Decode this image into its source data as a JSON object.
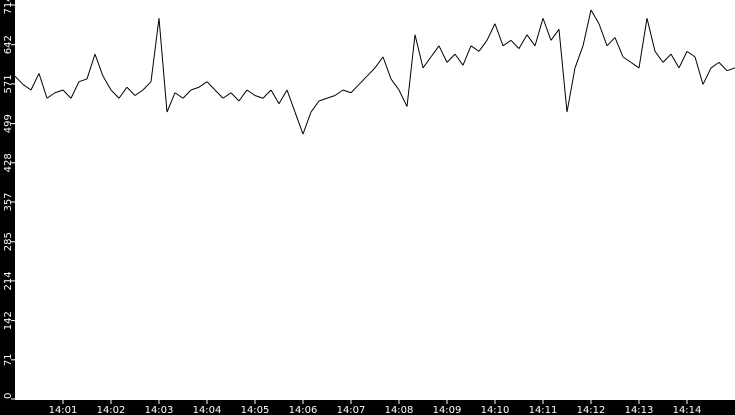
{
  "chart_data": {
    "type": "line",
    "title": "",
    "xlabel": "",
    "ylabel": "",
    "ylim": [
      0,
      714
    ],
    "xlim": [
      "14:00:00",
      "14:15:00"
    ],
    "y_ticks": [
      "0",
      "71",
      "142",
      "214",
      "285",
      "357",
      "428",
      "499",
      "571",
      "642",
      "714"
    ],
    "x_ticks": [
      "14:01",
      "14:02",
      "14:03",
      "14:04",
      "14:05",
      "14:06",
      "14:07",
      "14:08",
      "14:09",
      "14:10",
      "14:11",
      "14:12",
      "14:13",
      "14:14"
    ],
    "grid": false,
    "x_interval_seconds": 10,
    "series": [
      {
        "values": [
          585,
          570,
          560,
          590,
          545,
          555,
          560,
          545,
          575,
          580,
          625,
          585,
          560,
          545,
          565,
          550,
          560,
          575,
          690,
          520,
          555,
          545,
          560,
          565,
          575,
          560,
          545,
          555,
          540,
          560,
          550,
          545,
          560,
          535,
          560,
          520,
          480,
          520,
          540,
          545,
          550,
          560,
          555,
          570,
          585,
          600,
          620,
          580,
          560,
          530,
          660,
          600,
          620,
          640,
          610,
          625,
          605,
          640,
          630,
          650,
          680,
          640,
          650,
          635,
          660,
          640,
          690,
          650,
          670,
          520,
          600,
          640,
          705,
          680,
          640,
          655,
          620,
          610,
          600,
          690,
          630,
          610,
          625,
          600,
          630,
          620,
          570,
          600,
          610,
          595,
          600
        ]
      }
    ],
    "colors": {
      "background": "#000000",
      "plot": "#ffffff",
      "line": "#000000",
      "text": "#ffffff"
    }
  }
}
